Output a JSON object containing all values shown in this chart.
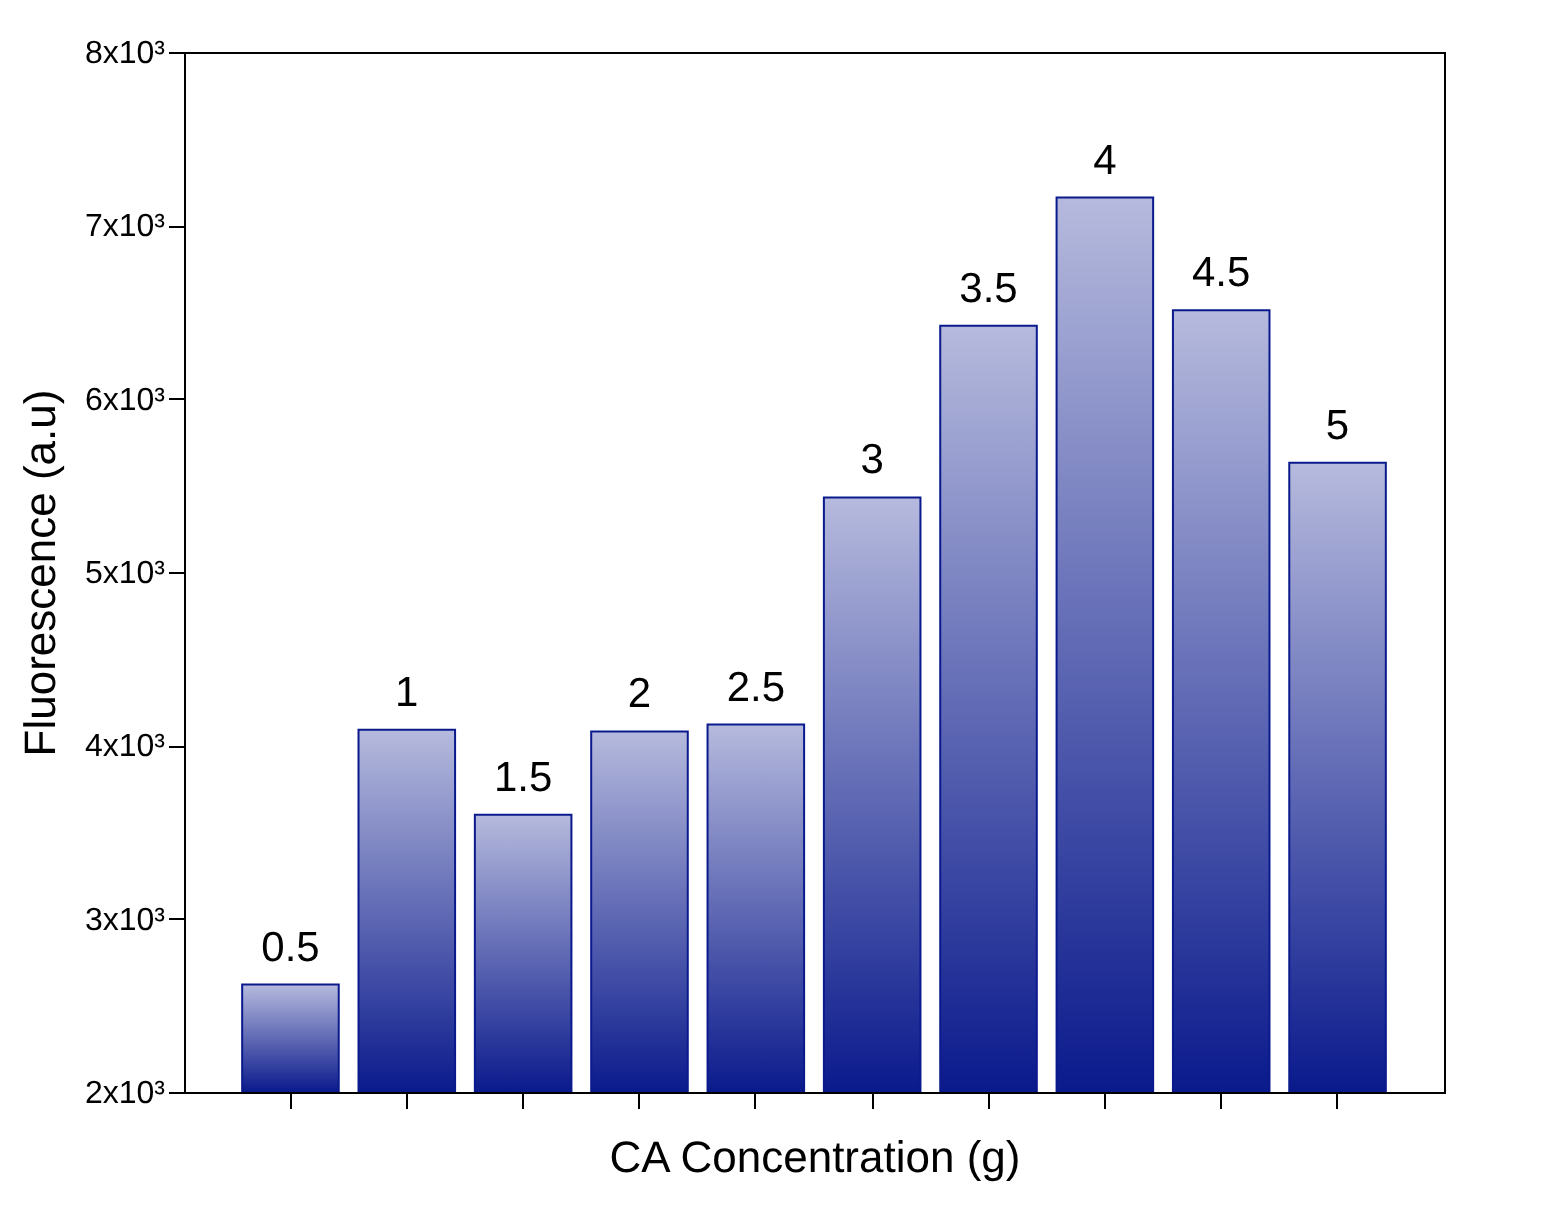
{
  "chart_data": {
    "type": "bar",
    "xlabel": "CA Concentration (g)",
    "ylabel": "Fluorescence (a.u)",
    "categories": [
      "0.5",
      "1",
      "1.5",
      "2",
      "2.5",
      "3",
      "3.5",
      "4",
      "4.5",
      "5"
    ],
    "values": [
      2620,
      4090,
      3600,
      4080,
      4120,
      5430,
      6420,
      7160,
      6510,
      5630
    ],
    "color": "#0a1a8c",
    "ylim": [
      2000,
      8000
    ],
    "yticks": [
      {
        "value": 2000,
        "label": "2x10³"
      },
      {
        "value": 3000,
        "label": "3x10³"
      },
      {
        "value": 4000,
        "label": "4x10³"
      },
      {
        "value": 5000,
        "label": "5x10³"
      },
      {
        "value": 6000,
        "label": "6x10³"
      },
      {
        "value": 7000,
        "label": "7x10³"
      },
      {
        "value": 8000,
        "label": "8x10³"
      }
    ],
    "tick_labels": "y"
  }
}
